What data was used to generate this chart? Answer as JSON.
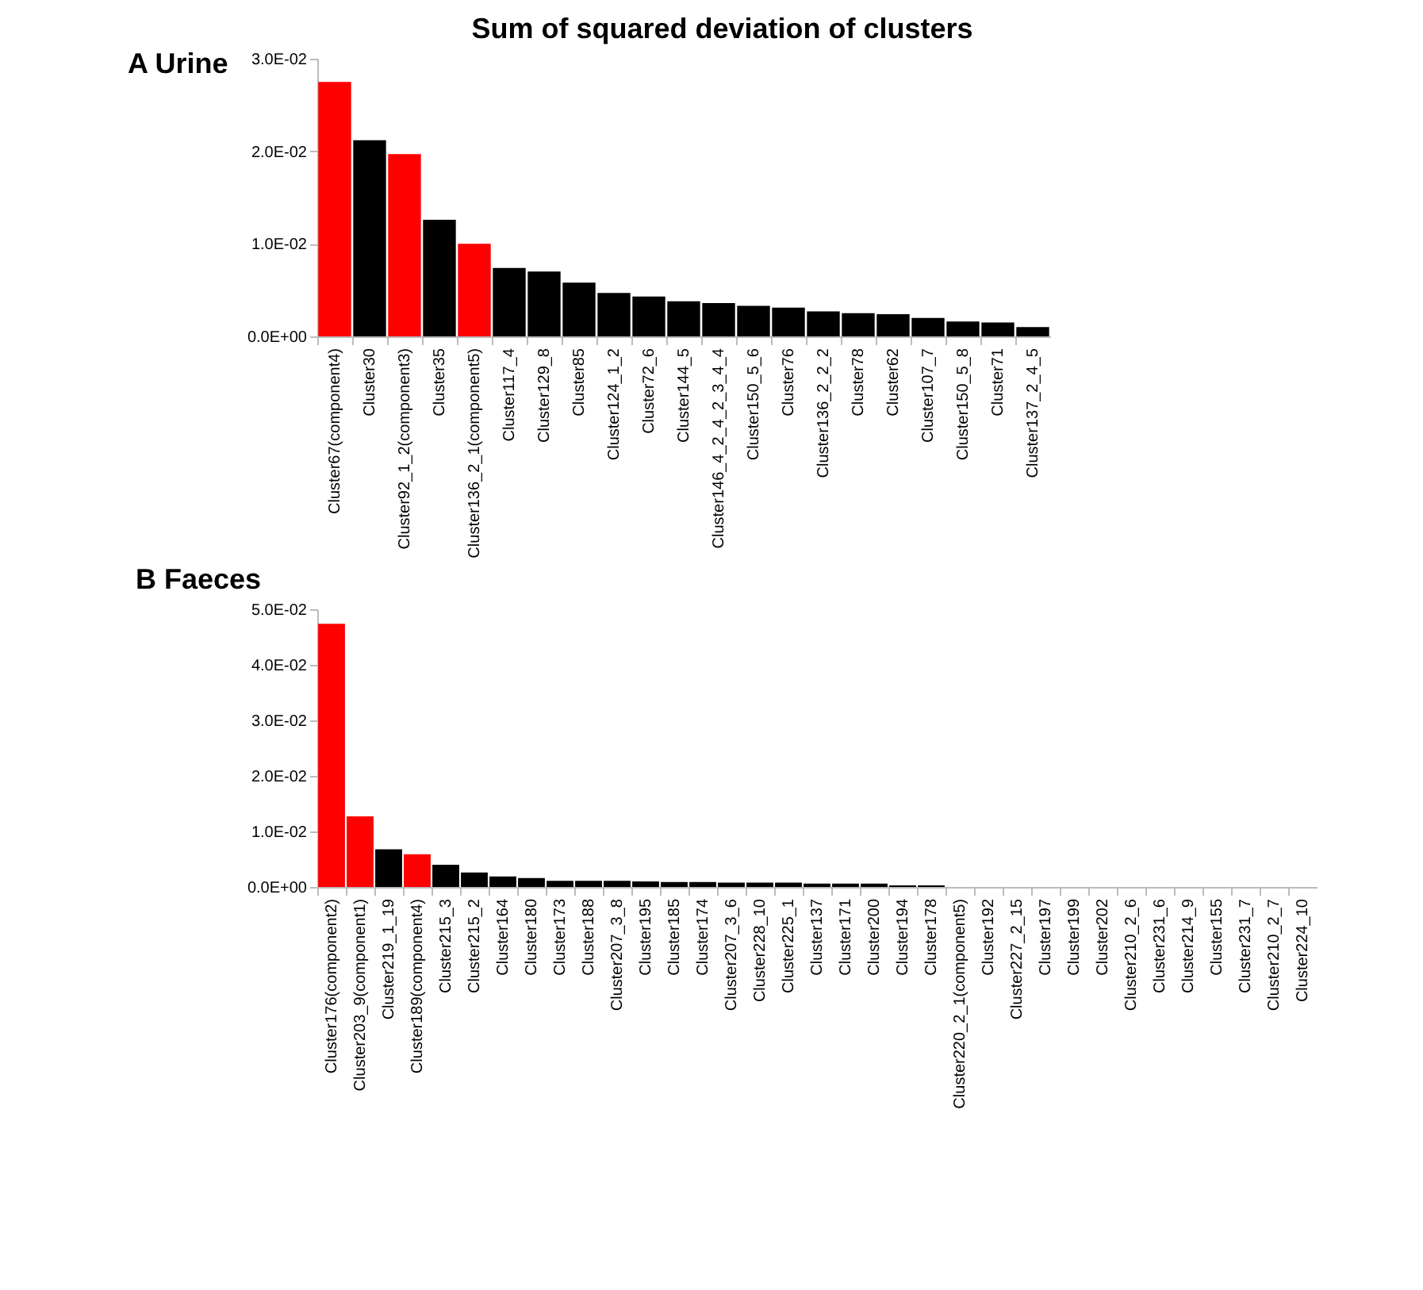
{
  "chart_data": [
    {
      "type": "bar",
      "title": "Sum of squared deviation of clusters",
      "subtitle": "A Urine",
      "categories": [
        "Cluster67(component4)",
        "Cluster30",
        "Cluster92_1_2(component3)",
        "Cluster35",
        "Cluster136_2_1(component5)",
        "Cluster117_4",
        "Cluster129_8",
        "Cluster85",
        "Cluster124_1_2",
        "Cluster72_6",
        "Cluster144_5",
        "Cluster146_4_2_4_2_3_4_4",
        "Cluster150_5_6",
        "Cluster76",
        "Cluster136_2_2_2",
        "Cluster78",
        "Cluster62",
        "Cluster107_7",
        "Cluster150_5_8",
        "Cluster71",
        "Cluster137_2_4_5"
      ],
      "values": [
        0.0275,
        0.0212,
        0.0197,
        0.0126,
        0.01,
        0.0074,
        0.007,
        0.0058,
        0.0047,
        0.0043,
        0.0038,
        0.0036,
        0.0033,
        0.0031,
        0.0027,
        0.0025,
        0.0024,
        0.002,
        0.0016,
        0.0015,
        0.001
      ],
      "colors": [
        "#ff0000",
        "#000000",
        "#ff0000",
        "#000000",
        "#ff0000",
        "#000000",
        "#000000",
        "#000000",
        "#000000",
        "#000000",
        "#000000",
        "#000000",
        "#000000",
        "#000000",
        "#000000",
        "#000000",
        "#000000",
        "#000000",
        "#000000",
        "#000000",
        "#000000"
      ],
      "ylim": [
        0,
        0.03
      ],
      "yticks": [
        {
          "value": 0,
          "label": "0.0E+00"
        },
        {
          "value": 0.01,
          "label": "1.0E-02"
        },
        {
          "value": 0.02,
          "label": "2.0E-02"
        },
        {
          "value": 0.03,
          "label": "3.0E-02"
        }
      ],
      "grid": false
    },
    {
      "type": "bar",
      "title": "B Faeces",
      "categories": [
        "Cluster176(component2)",
        "Cluster203_9(component1)",
        "Cluster219_1_19",
        "Cluster189(component4)",
        "Cluster215_3",
        "Cluster215_2",
        "Cluster164",
        "Cluster180",
        "Cluster173",
        "Cluster188",
        "Cluster207_3_8",
        "Cluster195",
        "Cluster185",
        "Cluster174",
        "Cluster207_3_6",
        "Cluster228_10",
        "Cluster225_1",
        "Cluster137",
        "Cluster171",
        "Cluster200",
        "Cluster194",
        "Cluster178",
        "Cluster220_2_1(component5)",
        "Cluster192",
        "Cluster227_2_15",
        "Cluster197",
        "Cluster199",
        "Cluster202",
        "Cluster210_2_6",
        "Cluster231_6",
        "Cluster214_9",
        "Cluster155",
        "Cluster231_7",
        "Cluster210_2_7",
        "Cluster224_10"
      ],
      "values": [
        0.0474,
        0.0127,
        0.0068,
        0.0059,
        0.004,
        0.0026,
        0.0019,
        0.0016,
        0.0011,
        0.0011,
        0.0011,
        0.001,
        0.0009,
        0.0009,
        0.0008,
        0.0008,
        0.0008,
        0.0006,
        0.0006,
        0.0006,
        0.0003,
        0.0003,
        0,
        0,
        0,
        0,
        0,
        0,
        0,
        0,
        0,
        0,
        0,
        0,
        0
      ],
      "colors": [
        "#ff0000",
        "#ff0000",
        "#000000",
        "#ff0000",
        "#000000",
        "#000000",
        "#000000",
        "#000000",
        "#000000",
        "#000000",
        "#000000",
        "#000000",
        "#000000",
        "#000000",
        "#000000",
        "#000000",
        "#000000",
        "#000000",
        "#000000",
        "#000000",
        "#000000",
        "#000000",
        "#ff0000",
        "#000000",
        "#000000",
        "#000000",
        "#000000",
        "#000000",
        "#000000",
        "#000000",
        "#000000",
        "#000000",
        "#000000",
        "#000000",
        "#000000"
      ],
      "ylim": [
        0,
        0.05
      ],
      "yticks": [
        {
          "value": 0,
          "label": "0.0E+00"
        },
        {
          "value": 0.01,
          "label": "1.0E-02"
        },
        {
          "value": 0.02,
          "label": "2.0E-02"
        },
        {
          "value": 0.03,
          "label": "3.0E-02"
        },
        {
          "value": 0.04,
          "label": "4.0E-02"
        },
        {
          "value": 0.05,
          "label": "5.0E-02"
        }
      ],
      "grid": false
    }
  ]
}
